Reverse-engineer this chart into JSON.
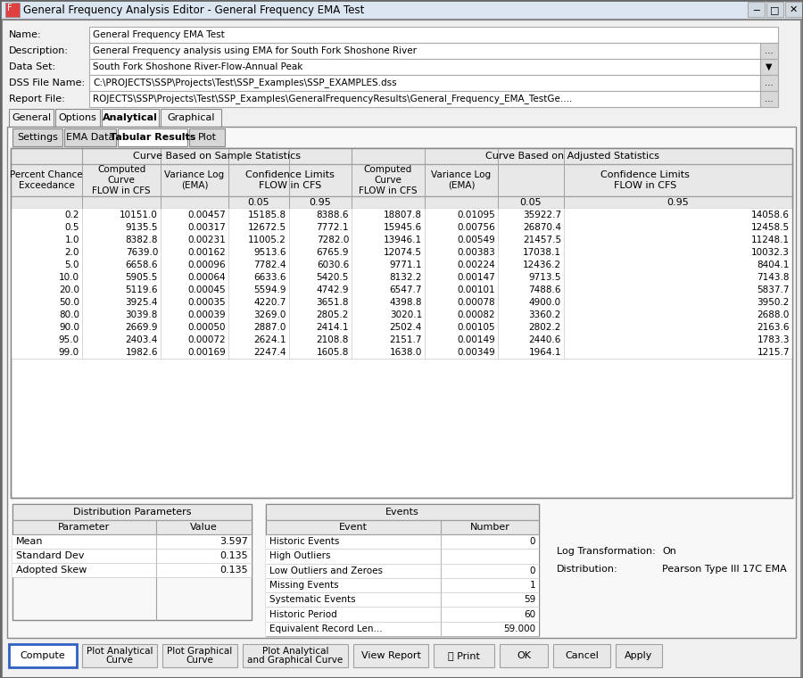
{
  "title": "General Frequency Analysis Editor - General Frequency EMA Test",
  "name_label": "Name:",
  "name_value": "General Frequency EMA Test",
  "desc_label": "Description:",
  "desc_value": "General Frequency analysis using EMA for South Fork Shoshone River",
  "dataset_label": "Data Set:",
  "dataset_value": "South Fork Shoshone River-Flow-Annual Peak",
  "dss_label": "DSS File Name:",
  "dss_value": "C:\\PROJECTS\\SSP\\Projects\\Test\\SSP_Examples\\SSP_EXAMPLES.dss",
  "report_label": "Report File:",
  "report_value": "ROJECTS\\SSP\\Projects\\Test\\SSP_Examples\\GeneralFrequencyResults\\General_Frequency_EMA_TestGe....",
  "tabs": [
    "General",
    "Options",
    "Analytical",
    "Graphical"
  ],
  "active_tab": "Analytical",
  "subtabs": [
    "Settings",
    "EMA Data",
    "Tabular Results",
    "Plot"
  ],
  "active_subtab": "Tabular Results",
  "table_data": [
    [
      "0.2",
      "10151.0",
      "0.00457",
      "15185.8",
      "8388.6",
      "18807.8",
      "0.01095",
      "35922.7",
      "14058.6"
    ],
    [
      "0.5",
      "9135.5",
      "0.00317",
      "12672.5",
      "7772.1",
      "15945.6",
      "0.00756",
      "26870.4",
      "12458.5"
    ],
    [
      "1.0",
      "8382.8",
      "0.00231",
      "11005.2",
      "7282.0",
      "13946.1",
      "0.00549",
      "21457.5",
      "11248.1"
    ],
    [
      "2.0",
      "7639.0",
      "0.00162",
      "9513.6",
      "6765.9",
      "12074.5",
      "0.00383",
      "17038.1",
      "10032.3"
    ],
    [
      "5.0",
      "6658.6",
      "0.00096",
      "7782.4",
      "6030.6",
      "9771.1",
      "0.00224",
      "12436.2",
      "8404.1"
    ],
    [
      "10.0",
      "5905.5",
      "0.00064",
      "6633.6",
      "5420.5",
      "8132.2",
      "0.00147",
      "9713.5",
      "7143.8"
    ],
    [
      "20.0",
      "5119.6",
      "0.00045",
      "5594.9",
      "4742.9",
      "6547.7",
      "0.00101",
      "7488.6",
      "5837.7"
    ],
    [
      "50.0",
      "3925.4",
      "0.00035",
      "4220.7",
      "3651.8",
      "4398.8",
      "0.00078",
      "4900.0",
      "3950.2"
    ],
    [
      "80.0",
      "3039.8",
      "0.00039",
      "3269.0",
      "2805.2",
      "3020.1",
      "0.00082",
      "3360.2",
      "2688.0"
    ],
    [
      "90.0",
      "2669.9",
      "0.00050",
      "2887.0",
      "2414.1",
      "2502.4",
      "0.00105",
      "2802.2",
      "2163.6"
    ],
    [
      "95.0",
      "2403.4",
      "0.00072",
      "2624.1",
      "2108.8",
      "2151.7",
      "0.00149",
      "2440.6",
      "1783.3"
    ],
    [
      "99.0",
      "1982.6",
      "0.00169",
      "2247.4",
      "1605.8",
      "1638.0",
      "0.00349",
      "1964.1",
      "1215.7"
    ]
  ],
  "dist_params": [
    [
      "Mean",
      "3.597"
    ],
    [
      "Standard Dev",
      "0.135"
    ],
    [
      "Adopted Skew",
      "0.135"
    ]
  ],
  "events": [
    [
      "Historic Events",
      "0"
    ],
    [
      "High Outliers",
      ""
    ],
    [
      "Low Outliers and Zeroes",
      "0"
    ],
    [
      "Missing Events",
      "1"
    ],
    [
      "Systematic Events",
      "59"
    ],
    [
      "Historic Period",
      "60"
    ],
    [
      "Equivalent Record Len...",
      "59.000"
    ]
  ],
  "log_transform_label": "Log Transformation:",
  "log_transform_value": "On",
  "distribution_label": "Distribution:",
  "distribution_value": "Pearson Type III 17C EMA",
  "bg_color": "#f0f0f0",
  "titlebar_bg": "#dce6f0",
  "white": "#ffffff",
  "border_dark": "#888888",
  "border_light": "#c0c0c0",
  "header_bg": "#e8e8e8",
  "text_color": "#000000",
  "button_bg": "#e0e0e0",
  "compute_border": "#3060c0"
}
